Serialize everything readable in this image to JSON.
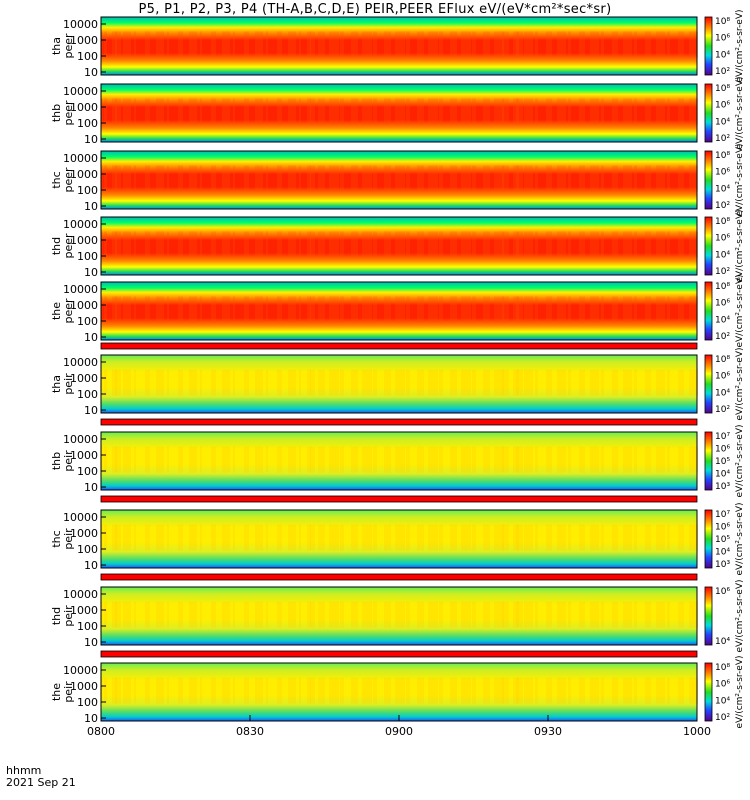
{
  "title": "P5, P1, P2, P3, P4 (TH-A,B,C,D,E) PEIR,PEER EFlux eV/(eV*cm²*sec*sr)",
  "footer": {
    "line1": "hhmm",
    "line2": "2021 Sep 21"
  },
  "colors": {
    "frame": "#000000",
    "separator": "#ff0000"
  },
  "chart_data": {
    "type": "heatmap",
    "x_ticks": [
      "0800",
      "0830",
      "0900",
      "0930",
      "1000"
    ],
    "y_ticks": [
      "10",
      "100",
      "1000",
      "10000"
    ],
    "y_scale": "log",
    "panels": [
      {
        "label1": "tha",
        "label2": "peer",
        "cb_ticks": [
          "10⁸",
          "10⁶",
          "10⁴",
          "10²"
        ],
        "cb_label": "eV/(cm²-s-sr-eV)"
      },
      {
        "label1": "thb",
        "label2": "peer",
        "cb_ticks": [
          "10⁸",
          "10⁶",
          "10⁴",
          "10²"
        ],
        "cb_label": "eV/(cm²-s-sr-eV)"
      },
      {
        "label1": "thc",
        "label2": "peer",
        "cb_ticks": [
          "10⁸",
          "10⁶",
          "10⁴",
          "10²"
        ],
        "cb_label": "eV/(cm²-s-sr-eV)"
      },
      {
        "label1": "thd",
        "label2": "peer",
        "cb_ticks": [
          "10⁸",
          "10⁶",
          "10⁴",
          "10²"
        ],
        "cb_label": "eV/(cm²-s-sr-eV)"
      },
      {
        "label1": "the",
        "label2": "peer",
        "cb_ticks": [
          "10⁸",
          "10⁶",
          "10⁴",
          "10²"
        ],
        "cb_label": "eV/(cm²-s-sr-eV)"
      },
      {
        "label1": "tha",
        "label2": "peir",
        "cb_ticks": [
          "10⁸",
          "10⁶",
          "10⁴",
          "10²"
        ],
        "cb_label": "eV/(cm²-s-sr-eV)"
      },
      {
        "label1": "thb",
        "label2": "peir",
        "cb_ticks": [
          "10⁷",
          "10⁶",
          "10⁵",
          "10⁴",
          "10³"
        ],
        "cb_label": "eV/(cm²-s-sr-eV)"
      },
      {
        "label1": "thc",
        "label2": "peir",
        "cb_ticks": [
          "10⁷",
          "10⁶",
          "10⁵",
          "10⁴",
          "10³"
        ],
        "cb_label": "eV/(cm²-s-sr-eV)"
      },
      {
        "label1": "thd",
        "label2": "peir",
        "cb_ticks": [
          "10⁶",
          "10⁴"
        ],
        "cb_label": "eV/(cm²-s-sr-eV)"
      },
      {
        "label1": "the",
        "label2": "peir",
        "cb_ticks": [
          "10⁸",
          "10⁶",
          "10⁴",
          "10²"
        ],
        "cb_label": "eV/(cm²-s-sr-eV)"
      }
    ]
  }
}
